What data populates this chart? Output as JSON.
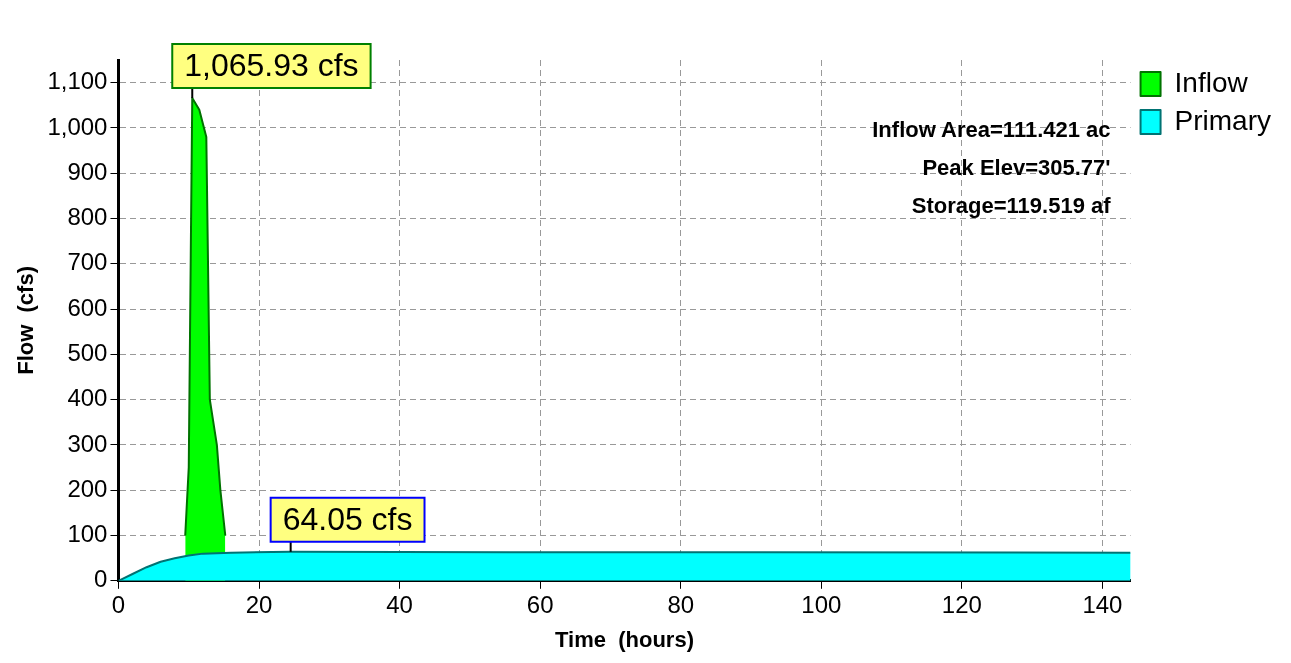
{
  "chart_data": {
    "type": "area",
    "xlabel": "Time  (hours)",
    "ylabel": "Flow  (cfs)",
    "xlim": [
      0,
      144
    ],
    "xticks": [
      0,
      20,
      40,
      60,
      80,
      100,
      120,
      140
    ],
    "ylim": [
      0,
      1150
    ],
    "yticks": [
      {
        "value": 0,
        "label": "0"
      },
      {
        "value": 100,
        "label": "100"
      },
      {
        "value": 200,
        "label": "200"
      },
      {
        "value": 300,
        "label": "300"
      },
      {
        "value": 400,
        "label": "400"
      },
      {
        "value": 500,
        "label": "500"
      },
      {
        "value": 600,
        "label": "600"
      },
      {
        "value": 700,
        "label": "700"
      },
      {
        "value": 800,
        "label": "800"
      },
      {
        "value": 900,
        "label": "900"
      },
      {
        "value": 1000,
        "label": "1,000"
      },
      {
        "value": 1100,
        "label": "1,100"
      }
    ],
    "grid": true,
    "line_style": "solid",
    "legend": "top right",
    "series": [
      {
        "name": "Inflow",
        "color": "#00ff00",
        "x": [
          9.5,
          10,
          10.5,
          11.5,
          12.5,
          13,
          14,
          14.5,
          15.2
        ],
        "values": [
          100,
          250,
          1065.93,
          1040,
          980,
          400,
          300,
          200,
          100
        ]
      },
      {
        "name": "Primary",
        "color": "#00ffff",
        "x": [
          0,
          2,
          4,
          6,
          8,
          10,
          12,
          16,
          24.5,
          40,
          80,
          144
        ],
        "values": [
          0,
          15,
          30,
          42,
          50,
          56,
          60,
          62,
          64.05,
          63.5,
          63,
          62
        ]
      }
    ],
    "annotations": [
      "Inflow Area=111.421 ac",
      "Peak Elev=305.77'",
      "Storage=119.519 af",
      {
        "text": "1,065.93 cfs",
        "x": 10.5,
        "y": 1065.93
      },
      {
        "text": "64.05 cfs",
        "x": 24.5,
        "y": 64.05
      }
    ]
  }
}
